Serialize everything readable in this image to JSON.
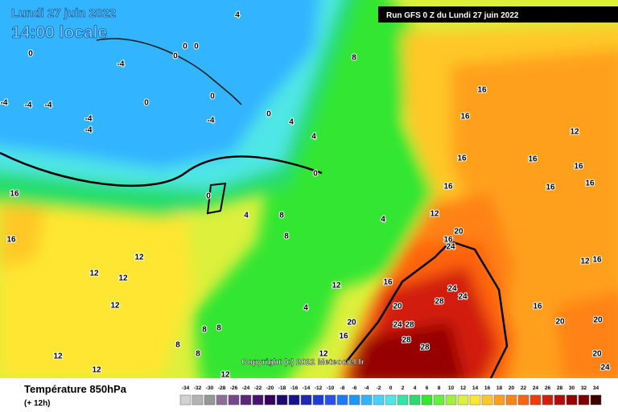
{
  "header": {
    "date": "Lundi 27 juin 2022",
    "time": "14:00 locale",
    "run": "Run GFS 0 Z du Lundi 27 juin 2022"
  },
  "copyright": "Copyright (c) 2022 Meteociel.fr",
  "footer": {
    "variable": "Température 850hPa",
    "lead": "(+ 12h)"
  },
  "scale": {
    "ticks": [
      -34,
      -32,
      -30,
      -28,
      -26,
      -24,
      -22,
      -20,
      -18,
      -16,
      -14,
      -12,
      -10,
      -8,
      -6,
      -4,
      -2,
      0,
      2,
      4,
      6,
      8,
      10,
      12,
      14,
      16,
      18,
      20,
      22,
      24,
      26,
      28,
      30,
      32,
      34
    ],
    "colors": [
      "#d2d2d2",
      "#b4b4b4",
      "#969696",
      "#8c6e9b",
      "#78468c",
      "#5a2878",
      "#46146e",
      "#32005a",
      "#1e0a6e",
      "#14148c",
      "#1e28b4",
      "#1e3cdc",
      "#2850f0",
      "#1e78ff",
      "#1e96ff",
      "#32b4ff",
      "#46d2ff",
      "#50e6e6",
      "#32e6aa",
      "#28dc6e",
      "#32e632",
      "#64f03c",
      "#a0f03c",
      "#dcf03c",
      "#ffe632",
      "#ffc828",
      "#ffa01e",
      "#ff8214",
      "#ff640a",
      "#f03c0a",
      "#d21e0a",
      "#b40a0a",
      "#960000",
      "#780000",
      "#3c0000"
    ]
  },
  "map_labels": [
    4,
    0,
    0,
    0,
    0,
    -4,
    0,
    0,
    -4,
    -4,
    -4,
    -4,
    -4,
    -4,
    0,
    4,
    4,
    0,
    0,
    4,
    8,
    8,
    8,
    16,
    16,
    16,
    16,
    16,
    16,
    12,
    16,
    16,
    12,
    20,
    16,
    24,
    4,
    12,
    16,
    24,
    24,
    28,
    20,
    16,
    20,
    20,
    20,
    24,
    24,
    28,
    28,
    28,
    20,
    16,
    12,
    16,
    16,
    12,
    12,
    12,
    12,
    8,
    8,
    8,
    8,
    12,
    12,
    12,
    4,
    12,
    16
  ]
}
